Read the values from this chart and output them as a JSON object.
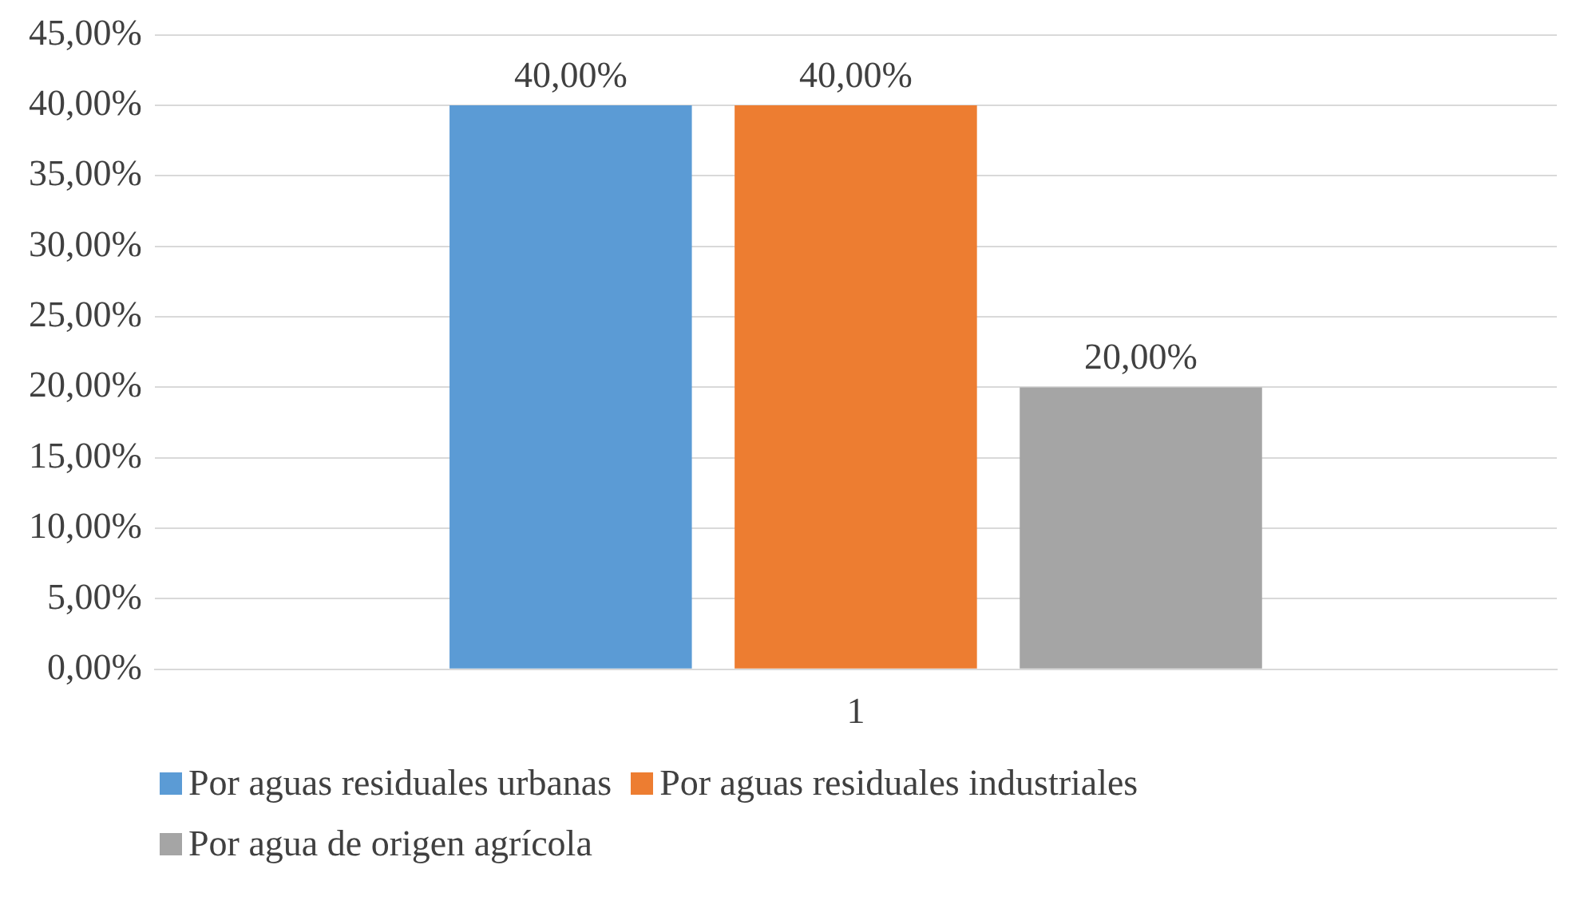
{
  "chart_data": {
    "type": "bar",
    "categories": [
      "1"
    ],
    "series": [
      {
        "name": "Por aguas residuales urbanas",
        "color": "#5b9bd5",
        "values": [
          40
        ],
        "value_labels": [
          "40,00%"
        ]
      },
      {
        "name": "Por aguas residuales industriales",
        "color": "#ed7d31",
        "values": [
          40
        ],
        "value_labels": [
          "40,00%"
        ]
      },
      {
        "name": "Por agua de origen agrícola",
        "color": "#a5a5a5",
        "values": [
          20
        ],
        "value_labels": [
          "20,00%"
        ]
      }
    ],
    "ylim": [
      0,
      45
    ],
    "yticks": [
      {
        "value": 0,
        "label": "0,00%"
      },
      {
        "value": 5,
        "label": "5,00%"
      },
      {
        "value": 10,
        "label": "10,00%"
      },
      {
        "value": 15,
        "label": "15,00%"
      },
      {
        "value": 20,
        "label": "20,00%"
      },
      {
        "value": 25,
        "label": "25,00%"
      },
      {
        "value": 30,
        "label": "30,00%"
      },
      {
        "value": 35,
        "label": "35,00%"
      },
      {
        "value": 40,
        "label": "40,00%"
      },
      {
        "value": 45,
        "label": "45,00%"
      }
    ],
    "grid": "y",
    "legend": "bottom"
  }
}
